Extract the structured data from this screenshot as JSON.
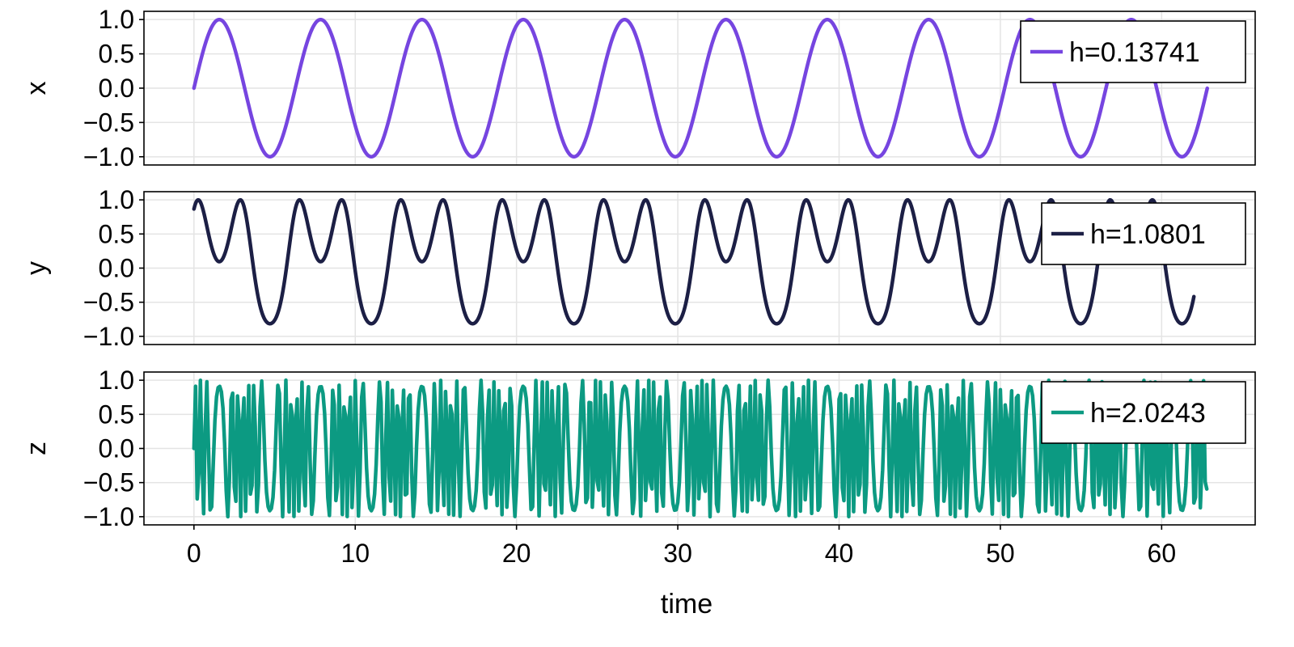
{
  "chart_data": [
    {
      "type": "line",
      "ylabel": "x",
      "xlabel": "",
      "xlim": [
        -3.1,
        65.8
      ],
      "ylim": [
        -1.12,
        1.12
      ],
      "x_ticks": [
        0,
        10,
        20,
        30,
        40,
        50,
        60
      ],
      "y_ticks": [
        1.0,
        0.5,
        0.0,
        -0.5,
        -1.0
      ],
      "y_tick_labels": [
        "1.0",
        "0.5",
        "0.0",
        "−0.5",
        "−1.0"
      ],
      "grid": true,
      "legend_position": "top-right",
      "series": [
        {
          "name": "h=0.13741",
          "color": "#7645e0",
          "x_range": [
            0,
            62.83
          ],
          "samples": 900,
          "function": "sin(t)"
        }
      ]
    },
    {
      "type": "line",
      "ylabel": "y",
      "xlabel": "",
      "xlim": [
        -3.1,
        65.8
      ],
      "ylim": [
        -1.12,
        1.12
      ],
      "x_ticks": [
        0,
        10,
        20,
        30,
        40,
        50,
        60
      ],
      "y_ticks": [
        1.0,
        0.5,
        0.0,
        -0.5,
        -1.0
      ],
      "y_tick_labels": [
        "1.0",
        "0.5",
        "0.0",
        "−0.5",
        "−1.0"
      ],
      "grid": true,
      "legend_position": "top-right",
      "series": [
        {
          "name": "h=1.0801",
          "color": "#1c1f45",
          "x_range": [
            0,
            62.0
          ],
          "samples": 1200,
          "function": "sin(2*sin(t) + pi/3)"
        }
      ]
    },
    {
      "type": "line",
      "ylabel": "z",
      "xlabel": "time",
      "xlim": [
        -3.1,
        65.8
      ],
      "ylim": [
        -1.12,
        1.12
      ],
      "x_ticks": [
        0,
        10,
        20,
        30,
        40,
        50,
        60
      ],
      "x_tick_labels": [
        "0",
        "10",
        "20",
        "30",
        "40",
        "50",
        "60"
      ],
      "y_ticks": [
        1.0,
        0.5,
        0.0,
        -0.5,
        -1.0
      ],
      "y_tick_labels": [
        "1.0",
        "0.5",
        "0.0",
        "−0.5",
        "−1.0"
      ],
      "grid": true,
      "legend_position": "top-right",
      "series": [
        {
          "name": "h=2.0243",
          "color": "#0c9a82",
          "x_range": [
            0,
            62.83
          ],
          "x_step": 0.1,
          "function": "sin(20*sin(t)), chaotic-looking values sampled every 0.1"
        }
      ]
    }
  ]
}
